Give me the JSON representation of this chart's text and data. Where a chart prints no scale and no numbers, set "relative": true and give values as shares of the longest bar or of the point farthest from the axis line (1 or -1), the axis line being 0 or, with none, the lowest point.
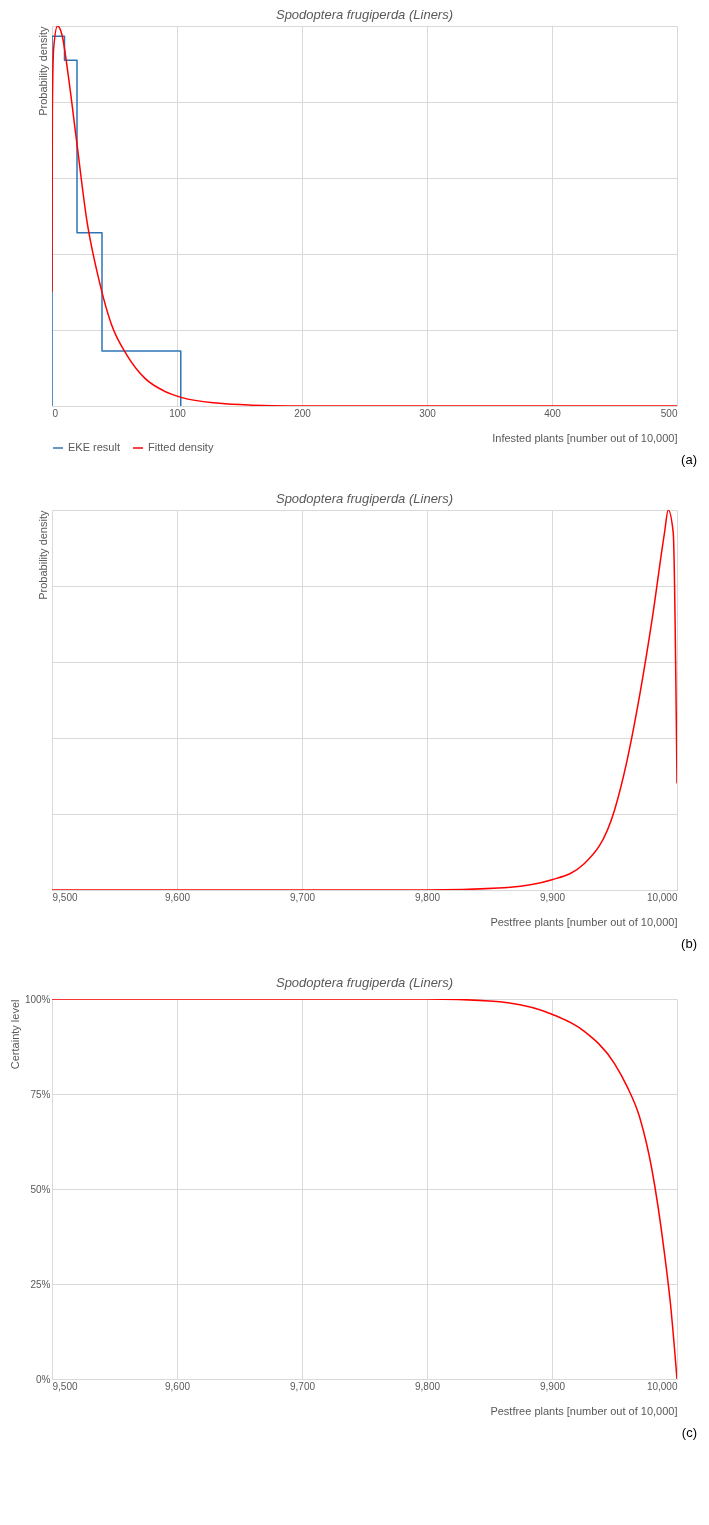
{
  "chart_data": [
    {
      "type": "line",
      "title": "Spodoptera frugiperda (Liners)",
      "xlabel": "Infested plants [number out of 10,000]",
      "ylabel": "Probability density",
      "relative": true,
      "xlim": [
        0,
        500
      ],
      "xticks": [
        0,
        100,
        200,
        300,
        400,
        500
      ],
      "grid": true,
      "legend": "bottom left",
      "annotations": [
        "(a)"
      ],
      "series": [
        {
          "name": "EKE result",
          "type": "step",
          "color": "#2e75b6",
          "x": [
            0,
            0,
            10,
            20,
            40,
            103
          ],
          "values": [
            0,
            0.973,
            0.91,
            0.456,
            0.145,
            0
          ]
        },
        {
          "name": "Fitted density",
          "type": "line",
          "color": "#ff0000",
          "x": [
            0,
            0.3,
            1.3,
            4.4,
            8.1,
            13,
            19.2,
            27.8,
            37.7,
            47.5,
            59.9,
            74.6,
            89.4,
            104,
            134,
            160,
            190,
            300,
            500
          ],
          "values": [
            0.3,
            0.78,
            0.94,
            1.0,
            0.975,
            0.87,
            0.71,
            0.49,
            0.33,
            0.215,
            0.134,
            0.072,
            0.04,
            0.022,
            0.007,
            0.002,
            0,
            0,
            0
          ]
        }
      ]
    },
    {
      "type": "line",
      "title": "Spodoptera frugiperda (Liners)",
      "xlabel": "Pestfree plants [number out of 10,000]",
      "ylabel": "Probability density",
      "relative": true,
      "xlim": [
        9500,
        10000
      ],
      "xticks": [
        {
          "value": 9500,
          "label": "9,500"
        },
        {
          "value": 9600,
          "label": "9,600"
        },
        {
          "value": 9700,
          "label": "9,700"
        },
        {
          "value": 9800,
          "label": "9,800"
        },
        {
          "value": 9900,
          "label": "9,900"
        },
        {
          "value": 10000,
          "label": "10,000"
        }
      ],
      "grid": true,
      "annotations": [
        "(b)"
      ],
      "series": [
        {
          "color": "#ff0000",
          "x": [
            9500,
            9700,
            9800,
            9857,
            9900,
            9925,
            9950,
            9960,
            9970,
            9980,
            9990,
            9993,
            9997,
            10000
          ],
          "values": [
            0,
            0,
            0,
            0.005,
            0.027,
            0.067,
            0.21,
            0.34,
            0.51,
            0.71,
            0.94,
            1.0,
            0.94,
            0.28
          ]
        }
      ]
    },
    {
      "type": "line",
      "title": "Spodoptera frugiperda (Liners)",
      "xlabel": "Pestfree plants [number out of 10,000]",
      "ylabel": "Certainty level",
      "xlim": [
        9500,
        10000
      ],
      "xticks": [
        {
          "value": 9500,
          "label": "9,500"
        },
        {
          "value": 9600,
          "label": "9,600"
        },
        {
          "value": 9700,
          "label": "9,700"
        },
        {
          "value": 9800,
          "label": "9,800"
        },
        {
          "value": 9900,
          "label": "9,900"
        },
        {
          "value": 10000,
          "label": "10,000"
        }
      ],
      "ylim": [
        0,
        100
      ],
      "yticks": [
        {
          "value": 0,
          "label": "0%"
        },
        {
          "value": 25,
          "label": "25%"
        },
        {
          "value": 50,
          "label": "50%"
        },
        {
          "value": 75,
          "label": "75%"
        },
        {
          "value": 100,
          "label": "100%"
        }
      ],
      "grid": true,
      "annotations": [
        "(c)"
      ],
      "series": [
        {
          "color": "#ff0000",
          "x": [
            9500,
            9700,
            9800,
            9850,
            9900,
            9925,
            9950,
            9960,
            9970,
            9980,
            9990,
            9995,
            10000
          ],
          "values": [
            100,
            100,
            100,
            99.5,
            96,
            91.7,
            83,
            77,
            69,
            55,
            33,
            19,
            0
          ]
        }
      ]
    }
  ]
}
